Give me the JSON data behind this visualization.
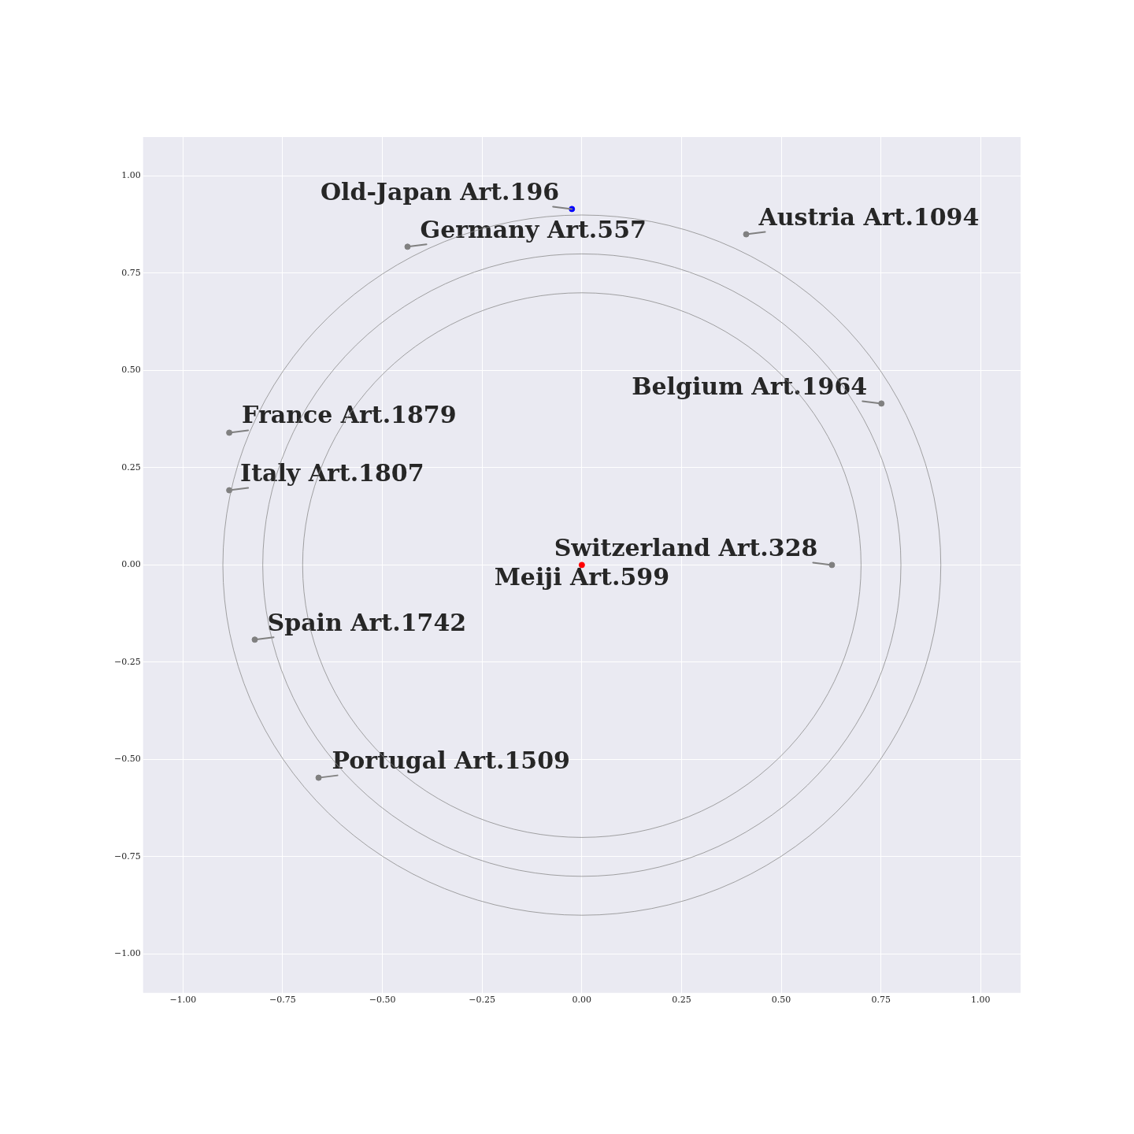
{
  "chart_data": {
    "type": "scatter",
    "xlim": [
      -1.1,
      1.1
    ],
    "ylim": [
      -1.1,
      1.1
    ],
    "xticks": [
      {
        "value": -1,
        "label": "−1.00"
      },
      {
        "value": -0.75,
        "label": "−0.75"
      },
      {
        "value": -0.5,
        "label": "−0.50"
      },
      {
        "value": -0.25,
        "label": "−0.25"
      },
      {
        "value": 0,
        "label": "0.00"
      },
      {
        "value": 0.25,
        "label": "0.25"
      },
      {
        "value": 0.5,
        "label": "0.50"
      },
      {
        "value": 0.75,
        "label": "0.75"
      },
      {
        "value": 1,
        "label": "1.00"
      }
    ],
    "yticks": [
      {
        "value": -1,
        "label": "−1.00"
      },
      {
        "value": -0.75,
        "label": "−0.75"
      },
      {
        "value": -0.5,
        "label": "−0.50"
      },
      {
        "value": -0.25,
        "label": "−0.25"
      },
      {
        "value": 0,
        "label": "0.00"
      },
      {
        "value": 0.25,
        "label": "0.25"
      },
      {
        "value": 0.5,
        "label": "0.50"
      },
      {
        "value": 0.75,
        "label": "0.75"
      },
      {
        "value": 1,
        "label": "1.00"
      }
    ],
    "grid": true,
    "legend": false,
    "marker": "circle",
    "series": [
      {
        "type": "scatter",
        "x": [
          -0.025,
          -0.437,
          0.412,
          0.751,
          -0.884,
          -0.884,
          0.627,
          0,
          -0.82,
          -0.66
        ],
        "values": [
          0.915,
          0.818,
          0.85,
          0.415,
          0.34,
          0.192,
          0,
          0,
          -0.192,
          -0.547
        ],
        "colors": [
          "#0000ff",
          "#808080",
          "#808080",
          "#808080",
          "#808080",
          "#808080",
          "#808080",
          "#ff0000",
          "#808080",
          "#808080"
        ]
      }
    ],
    "annotations": [
      {
        "text": "Old-Japan Art.196",
        "x": -0.025,
        "y": 0.915
      },
      {
        "text": "Germany Art.557",
        "x": -0.437,
        "y": 0.818
      },
      {
        "text": "Austria Art.1094",
        "x": 0.412,
        "y": 0.85
      },
      {
        "text": "Belgium Art.1964",
        "x": 0.751,
        "y": 0.415
      },
      {
        "text": "France Art.1879",
        "x": -0.884,
        "y": 0.34
      },
      {
        "text": "Italy Art.1807",
        "x": -0.884,
        "y": 0.192
      },
      {
        "text": "Switzerland Art.328",
        "x": 0.627,
        "y": 0
      },
      {
        "text": "Meiji Art.599",
        "x": 0,
        "y": 0
      },
      {
        "text": "Spain Art.1742",
        "x": -0.82,
        "y": -0.192
      },
      {
        "text": "Portugal Art.1509",
        "x": -0.66,
        "y": -0.547
      }
    ]
  }
}
